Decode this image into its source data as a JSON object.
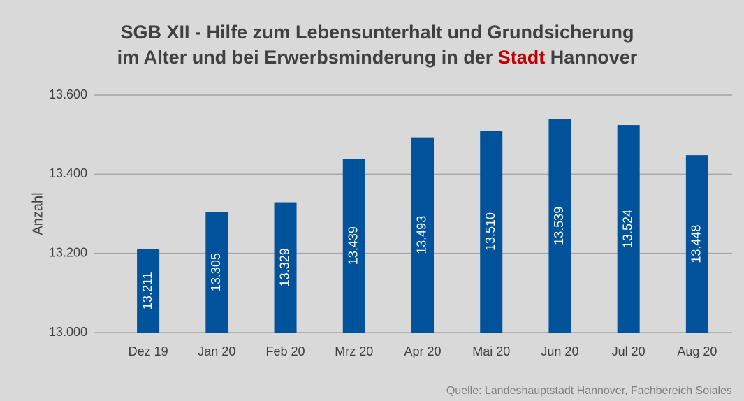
{
  "chart_data": {
    "type": "bar",
    "title": [
      "SGB XII - Hilfe zum Lebensunterhalt und Grundsicherung",
      "im Alter und bei Erwerbsminderung in der",
      "Stadt",
      "Hannover"
    ],
    "title_highlight_color": "#c00000",
    "ylabel": "Anzahl",
    "source": "Quelle: Landeshauptstadt Hannover, Fachbereich Soiales",
    "categories": [
      "Dez 19",
      "Jan 20",
      "Feb 20",
      "Mrz 20",
      "Apr 20",
      "Mai 20",
      "Jun 20",
      "Jul 20",
      "Aug 20"
    ],
    "values": [
      13211,
      13305,
      13329,
      13439,
      13493,
      13510,
      13539,
      13524,
      13448
    ],
    "value_labels": [
      "13.211",
      "13.305",
      "13.329",
      "13.439",
      "13.493",
      "13.510",
      "13.539",
      "13.524",
      "13.448"
    ],
    "color": "#00529b",
    "ylim": [
      13000,
      13600
    ],
    "yticks": [
      {
        "value": 13000,
        "label": "13.000"
      },
      {
        "value": 13200,
        "label": "13.200"
      },
      {
        "value": 13400,
        "label": "13.400"
      },
      {
        "value": 13600,
        "label": "13.600"
      }
    ],
    "grid": true
  }
}
